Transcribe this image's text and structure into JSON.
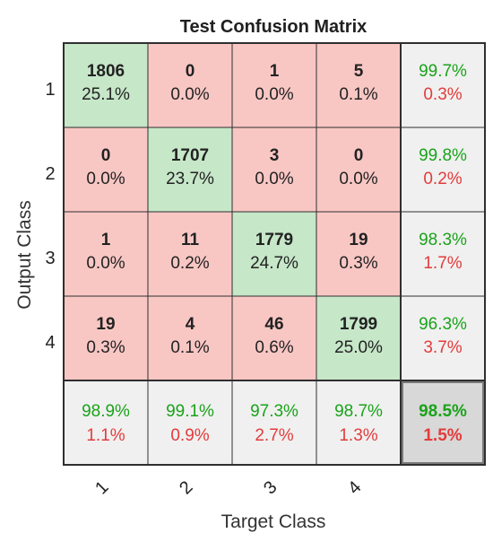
{
  "chart_data": {
    "type": "heatmap",
    "title": "Test Confusion Matrix",
    "xlabel": "Target Class",
    "ylabel": "Output Class",
    "x_tick_labels": [
      "1",
      "2",
      "3",
      "4"
    ],
    "y_tick_labels": [
      "1",
      "2",
      "3",
      "4"
    ],
    "matrix": [
      [
        {
          "count": "1806",
          "percent": "25.1%"
        },
        {
          "count": "0",
          "percent": "0.0%"
        },
        {
          "count": "1",
          "percent": "0.0%"
        },
        {
          "count": "5",
          "percent": "0.1%"
        }
      ],
      [
        {
          "count": "0",
          "percent": "0.0%"
        },
        {
          "count": "1707",
          "percent": "23.7%"
        },
        {
          "count": "3",
          "percent": "0.0%"
        },
        {
          "count": "0",
          "percent": "0.0%"
        }
      ],
      [
        {
          "count": "1",
          "percent": "0.0%"
        },
        {
          "count": "11",
          "percent": "0.2%"
        },
        {
          "count": "1779",
          "percent": "24.7%"
        },
        {
          "count": "19",
          "percent": "0.3%"
        }
      ],
      [
        {
          "count": "19",
          "percent": "0.3%"
        },
        {
          "count": "4",
          "percent": "0.1%"
        },
        {
          "count": "46",
          "percent": "0.6%"
        },
        {
          "count": "1799",
          "percent": "25.0%"
        }
      ]
    ],
    "row_summary": [
      {
        "correct": "99.7%",
        "error": "0.3%"
      },
      {
        "correct": "99.8%",
        "error": "0.2%"
      },
      {
        "correct": "98.3%",
        "error": "1.7%"
      },
      {
        "correct": "96.3%",
        "error": "3.7%"
      }
    ],
    "column_summary": [
      {
        "correct": "98.9%",
        "error": "1.1%"
      },
      {
        "correct": "99.1%",
        "error": "0.9%"
      },
      {
        "correct": "97.3%",
        "error": "2.7%"
      },
      {
        "correct": "98.7%",
        "error": "1.3%"
      }
    ],
    "overall": {
      "correct": "98.5%",
      "error": "1.5%"
    },
    "colors": {
      "correct_cell": "#c6e7c8",
      "error_cell": "#f8c7c4",
      "summary_cell": "#f0f0f0",
      "overall_cell": "#d8d8d8",
      "correct_text": "#1aa31a",
      "error_text": "#e33b3b",
      "cell_text": "#222222",
      "grid": "#2f2f2f"
    }
  }
}
